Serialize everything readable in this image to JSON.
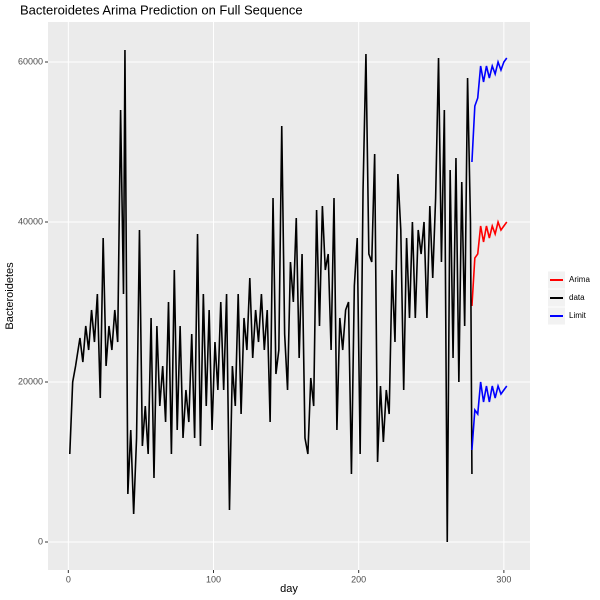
{
  "chart_data": {
    "type": "line",
    "title": "Bacteroidetes Arima Prediction on Full Sequence",
    "x_label": "day",
    "y_label": "Bacteroidetes",
    "xlim": [
      -14,
      318
    ],
    "ylim": [
      -3500,
      65000
    ],
    "xticks": [
      0,
      100,
      200,
      300
    ],
    "yticks": [
      0,
      20000,
      40000,
      60000
    ],
    "grid": true,
    "series": [
      {
        "name": "Arima",
        "color": "#ff0000",
        "x": [
          278,
          280,
          282,
          284,
          286,
          288,
          290,
          292,
          294,
          296,
          298,
          300,
          302
        ],
        "values": [
          29500,
          35500,
          36000,
          39500,
          37500,
          39500,
          38000,
          39500,
          38500,
          40000,
          39000,
          39500,
          40000
        ]
      },
      {
        "name": "data",
        "color": "#000000",
        "x": [
          1,
          3,
          5,
          8,
          10,
          12,
          14,
          16,
          18,
          20,
          22,
          24,
          26,
          28,
          30,
          32,
          34,
          36,
          38,
          39,
          41,
          43,
          45,
          47,
          49,
          51,
          53,
          55,
          57,
          59,
          61,
          63,
          65,
          67,
          69,
          71,
          73,
          75,
          77,
          79,
          81,
          83,
          85,
          87,
          89,
          91,
          93,
          95,
          97,
          99,
          101,
          103,
          105,
          107,
          109,
          111,
          113,
          115,
          117,
          119,
          121,
          123,
          125,
          127,
          129,
          131,
          133,
          135,
          137,
          139,
          141,
          143,
          145,
          147,
          149,
          151,
          153,
          155,
          157,
          159,
          161,
          163,
          165,
          167,
          169,
          171,
          173,
          175,
          177,
          179,
          181,
          183,
          185,
          187,
          189,
          191,
          193,
          195,
          197,
          199,
          201,
          203,
          205,
          207,
          209,
          211,
          213,
          215,
          217,
          219,
          221,
          223,
          225,
          227,
          229,
          231,
          233,
          235,
          237,
          239,
          241,
          243,
          245,
          247,
          249,
          251,
          253,
          255,
          257,
          259,
          261,
          263,
          265,
          267,
          269,
          271,
          273,
          275,
          277,
          278
        ],
        "values": [
          11000,
          20000,
          22000,
          25500,
          22500,
          27000,
          24000,
          29000,
          25000,
          31000,
          18000,
          38000,
          22000,
          27000,
          24000,
          29000,
          25000,
          54000,
          31000,
          61500,
          6000,
          14000,
          3500,
          13000,
          39000,
          12000,
          17000,
          11000,
          28000,
          8000,
          27000,
          17000,
          22000,
          15000,
          30000,
          11000,
          34000,
          14000,
          27000,
          13000,
          19000,
          15000,
          26000,
          13000,
          38500,
          12000,
          31000,
          17000,
          29000,
          14000,
          25000,
          19000,
          30000,
          19000,
          31000,
          4000,
          22000,
          17000,
          31000,
          16000,
          28000,
          24000,
          33000,
          23000,
          29000,
          25000,
          31000,
          24000,
          29000,
          15000,
          43000,
          21000,
          24000,
          52000,
          26000,
          19000,
          35000,
          30000,
          40500,
          23000,
          36000,
          13000,
          11000,
          20500,
          17000,
          41500,
          27000,
          42000,
          34000,
          36000,
          24000,
          43000,
          14000,
          28000,
          24000,
          29000,
          30000,
          8500,
          32000,
          38000,
          11000,
          44000,
          61000,
          36000,
          35000,
          48500,
          10000,
          19500,
          12500,
          19000,
          16000,
          34000,
          25000,
          46000,
          39000,
          19000,
          38000,
          28000,
          40000,
          28000,
          39000,
          36000,
          40000,
          28000,
          42000,
          33000,
          43000,
          60500,
          35000,
          54000,
          0,
          46500,
          23000,
          48000,
          20000,
          45000,
          27000,
          58000,
          40000,
          8500
        ]
      },
      {
        "name": "Limit",
        "color": "#0000ff",
        "x": [
          278,
          280,
          282,
          284,
          286,
          288,
          290,
          292,
          294,
          296,
          298,
          300,
          302
        ],
        "values": [
          47500,
          54500,
          55500,
          59500,
          57500,
          59500,
          58000,
          59500,
          58500,
          60000,
          59000,
          60000,
          60500
        ],
        "lower": [
          11500,
          16500,
          16000,
          20000,
          17500,
          19500,
          17500,
          19500,
          18000,
          19500,
          18500,
          19000,
          19500
        ]
      }
    ]
  }
}
